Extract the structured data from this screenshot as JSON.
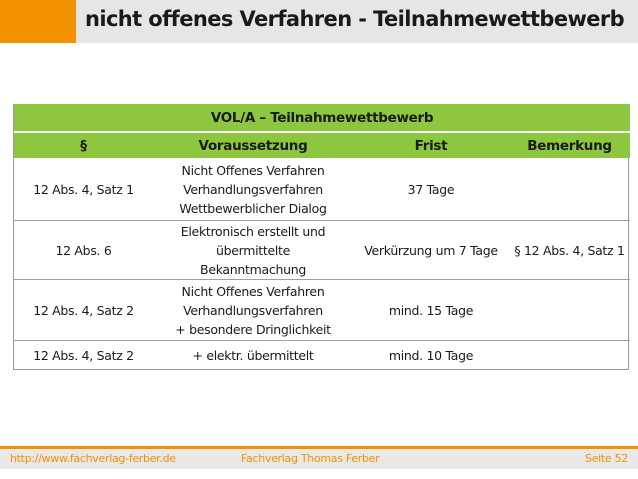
{
  "header": {
    "title": "nicht offenes Verfahren - Teilnahmewettbewerb",
    "accent_color": "#f39200"
  },
  "table": {
    "title": "VOL/A – Teilnahmewettbewerb",
    "header_color": "#8dc63f",
    "columns": [
      "§",
      "Voraussetzung",
      "Frist",
      "Bemerkung"
    ],
    "rows": [
      {
        "paragraph": "12 Abs. 4, Satz 1",
        "requirement": [
          "Nicht Offenes Verfahren",
          "Verhandlungsverfahren",
          "Wettbewerblicher Dialog"
        ],
        "deadline": "37 Tage",
        "remark": ""
      },
      {
        "paragraph": "12 Abs. 6",
        "requirement": [
          "Elektronisch erstellt und",
          "übermittelte",
          "Bekanntmachung"
        ],
        "deadline": "Verkürzung um 7 Tage",
        "remark": "§ 12 Abs. 4, Satz 1"
      },
      {
        "paragraph": "12 Abs. 4, Satz 2",
        "requirement": [
          "Nicht Offenes Verfahren",
          "Verhandlungsverfahren",
          "+ besondere Dringlichkeit"
        ],
        "deadline": "mind. 15 Tage",
        "remark": ""
      },
      {
        "paragraph": "12 Abs. 4, Satz 2",
        "requirement": [
          "+  elektr. übermittelt"
        ],
        "deadline": "mind. 10 Tage",
        "remark": ""
      }
    ]
  },
  "footer": {
    "url": "http://www.fachverlag-ferber.de",
    "publisher": "Fachverlag Thomas Ferber",
    "page": "Seite 52"
  }
}
